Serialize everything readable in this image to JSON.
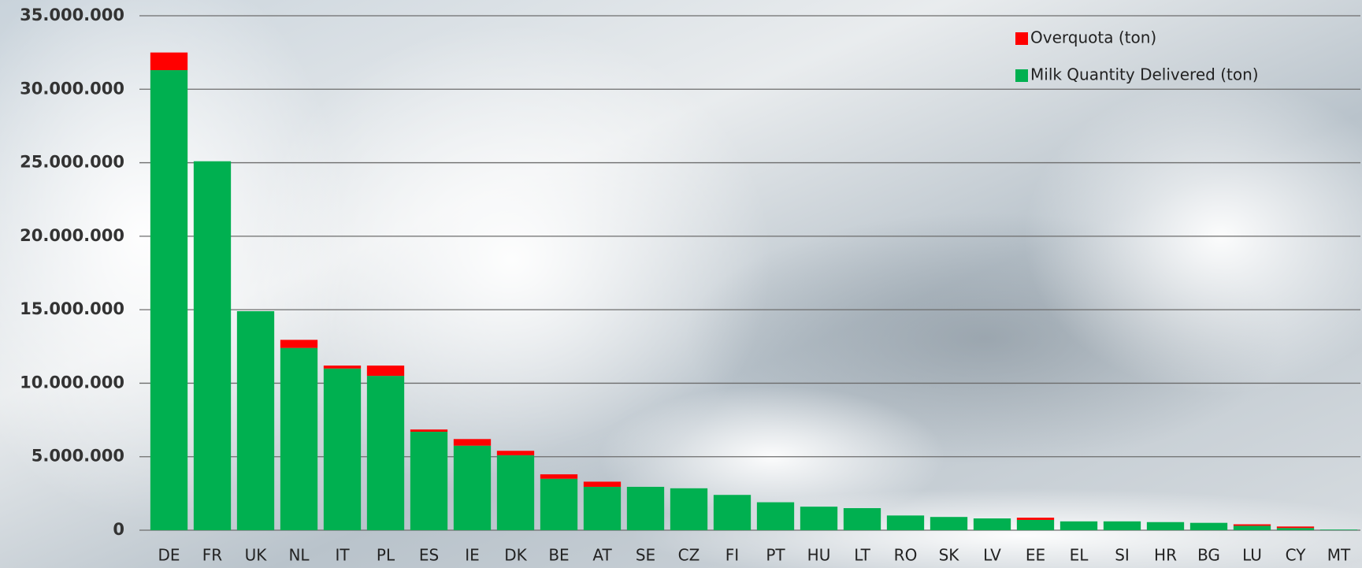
{
  "chart_data": {
    "type": "stacked-bar",
    "categories": [
      "DE",
      "FR",
      "UK",
      "NL",
      "IT",
      "PL",
      "ES",
      "IE",
      "DK",
      "BE",
      "AT",
      "SE",
      "CZ",
      "FI",
      "PT",
      "HU",
      "LT",
      "RO",
      "SK",
      "LV",
      "EE",
      "EL",
      "SI",
      "HR",
      "BG",
      "LU",
      "CY",
      "MT"
    ],
    "series": [
      {
        "name": "Milk Quantity Delivered (ton)",
        "color": "#00b050",
        "values": [
          31300000,
          25100000,
          14900000,
          12400000,
          11000000,
          10500000,
          6700000,
          5750000,
          5100000,
          3500000,
          2950000,
          2950000,
          2850000,
          2400000,
          1900000,
          1600000,
          1500000,
          1000000,
          900000,
          800000,
          700000,
          600000,
          600000,
          550000,
          500000,
          300000,
          150000,
          40000
        ]
      },
      {
        "name": "Overquota (ton)",
        "color": "#ff0000",
        "values": [
          1200000,
          0,
          0,
          550000,
          200000,
          700000,
          150000,
          450000,
          300000,
          300000,
          350000,
          0,
          0,
          0,
          0,
          0,
          0,
          0,
          0,
          0,
          150000,
          0,
          0,
          0,
          0,
          100000,
          100000,
          0
        ]
      }
    ],
    "ylim": [
      0,
      35000000
    ],
    "yticks": [
      0,
      {
        "value": 5000000,
        "label": "5.000.000"
      },
      {
        "value": 10000000,
        "label": "10.000.000"
      },
      {
        "value": 15000000,
        "label": "15.000.000"
      },
      {
        "value": 20000000,
        "label": "20.000.000"
      },
      {
        "value": 25000000,
        "label": "25.000.000"
      },
      {
        "value": 30000000,
        "label": "30.000.000"
      },
      {
        "value": 35000000,
        "label": "35.000.000"
      }
    ],
    "grid": true
  }
}
